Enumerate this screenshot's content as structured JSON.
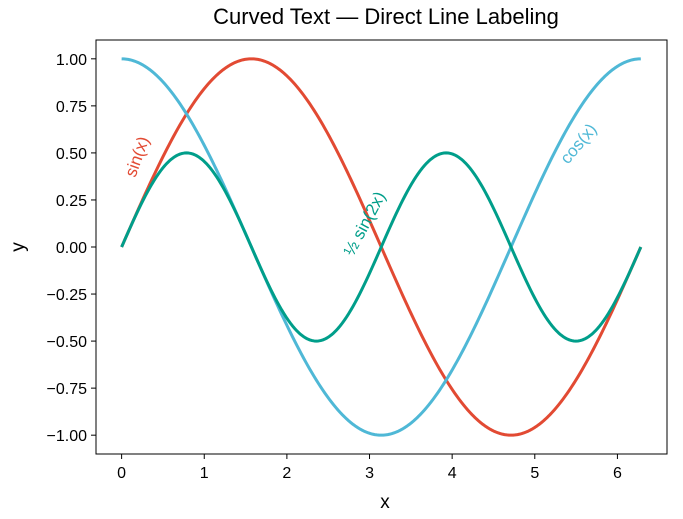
{
  "chart_data": {
    "type": "line",
    "title": "Curved Text — Direct Line Labeling",
    "xlabel": "x",
    "ylabel": "y",
    "xlim": [
      -0.31,
      6.6
    ],
    "ylim": [
      -1.1,
      1.1
    ],
    "grid": false,
    "legend": "none",
    "xticks": [
      0,
      1,
      2,
      3,
      4,
      5,
      6
    ],
    "xtick_labels": [
      "0",
      "1",
      "2",
      "3",
      "4",
      "5",
      "6"
    ],
    "yticks": [
      1.0,
      0.75,
      0.5,
      0.25,
      0.0,
      -0.25,
      -0.5,
      -0.75,
      -1.0
    ],
    "ytick_labels": [
      "1.00",
      "0.75",
      "0.50",
      "0.25",
      "0.00",
      "−0.25",
      "−0.50",
      "−0.75",
      "−1.00"
    ],
    "x": [
      0,
      0.25,
      0.5,
      0.75,
      1.0,
      1.25,
      1.5,
      1.75,
      2.0,
      2.25,
      2.5,
      2.75,
      3.0,
      3.25,
      3.5,
      3.75,
      4.0,
      4.25,
      4.5,
      4.75,
      5.0,
      5.25,
      5.5,
      5.75,
      6.0,
      6.283
    ],
    "series": [
      {
        "name": "sin(x)",
        "color": "#e24a33",
        "values": [
          0,
          0.247,
          0.479,
          0.682,
          0.841,
          0.949,
          0.997,
          0.984,
          0.909,
          0.778,
          0.598,
          0.382,
          0.141,
          -0.108,
          -0.351,
          -0.572,
          -0.757,
          -0.895,
          -0.978,
          -0.999,
          -0.959,
          -0.859,
          -0.706,
          -0.508,
          -0.279,
          0
        ],
        "label_at": {
          "x": 0.25,
          "y": 0.47,
          "rotate": -70
        }
      },
      {
        "name": "cos(x)",
        "color": "#4fb8d6",
        "values": [
          1,
          0.969,
          0.878,
          0.732,
          0.54,
          0.315,
          0.071,
          -0.178,
          -0.416,
          -0.628,
          -0.801,
          -0.924,
          -0.99,
          -0.994,
          -0.936,
          -0.82,
          -0.654,
          -0.446,
          -0.211,
          0.036,
          0.284,
          0.512,
          0.709,
          0.862,
          0.96,
          1.0
        ],
        "label_at": {
          "x": 5.58,
          "y": 0.53,
          "rotate": -50
        }
      },
      {
        "name": "½ sin(2x)",
        "color": "#009e8a",
        "values": [
          0,
          0.24,
          0.421,
          0.499,
          0.455,
          0.299,
          0.071,
          -0.175,
          -0.378,
          -0.488,
          -0.479,
          -0.353,
          -0.14,
          0.107,
          0.329,
          0.469,
          0.495,
          0.399,
          0.206,
          -0.035,
          -0.272,
          -0.44,
          -0.5,
          -0.431,
          -0.268,
          0
        ],
        "label_at": {
          "x": 3.0,
          "y": 0.11,
          "rotate": -62
        }
      }
    ]
  }
}
